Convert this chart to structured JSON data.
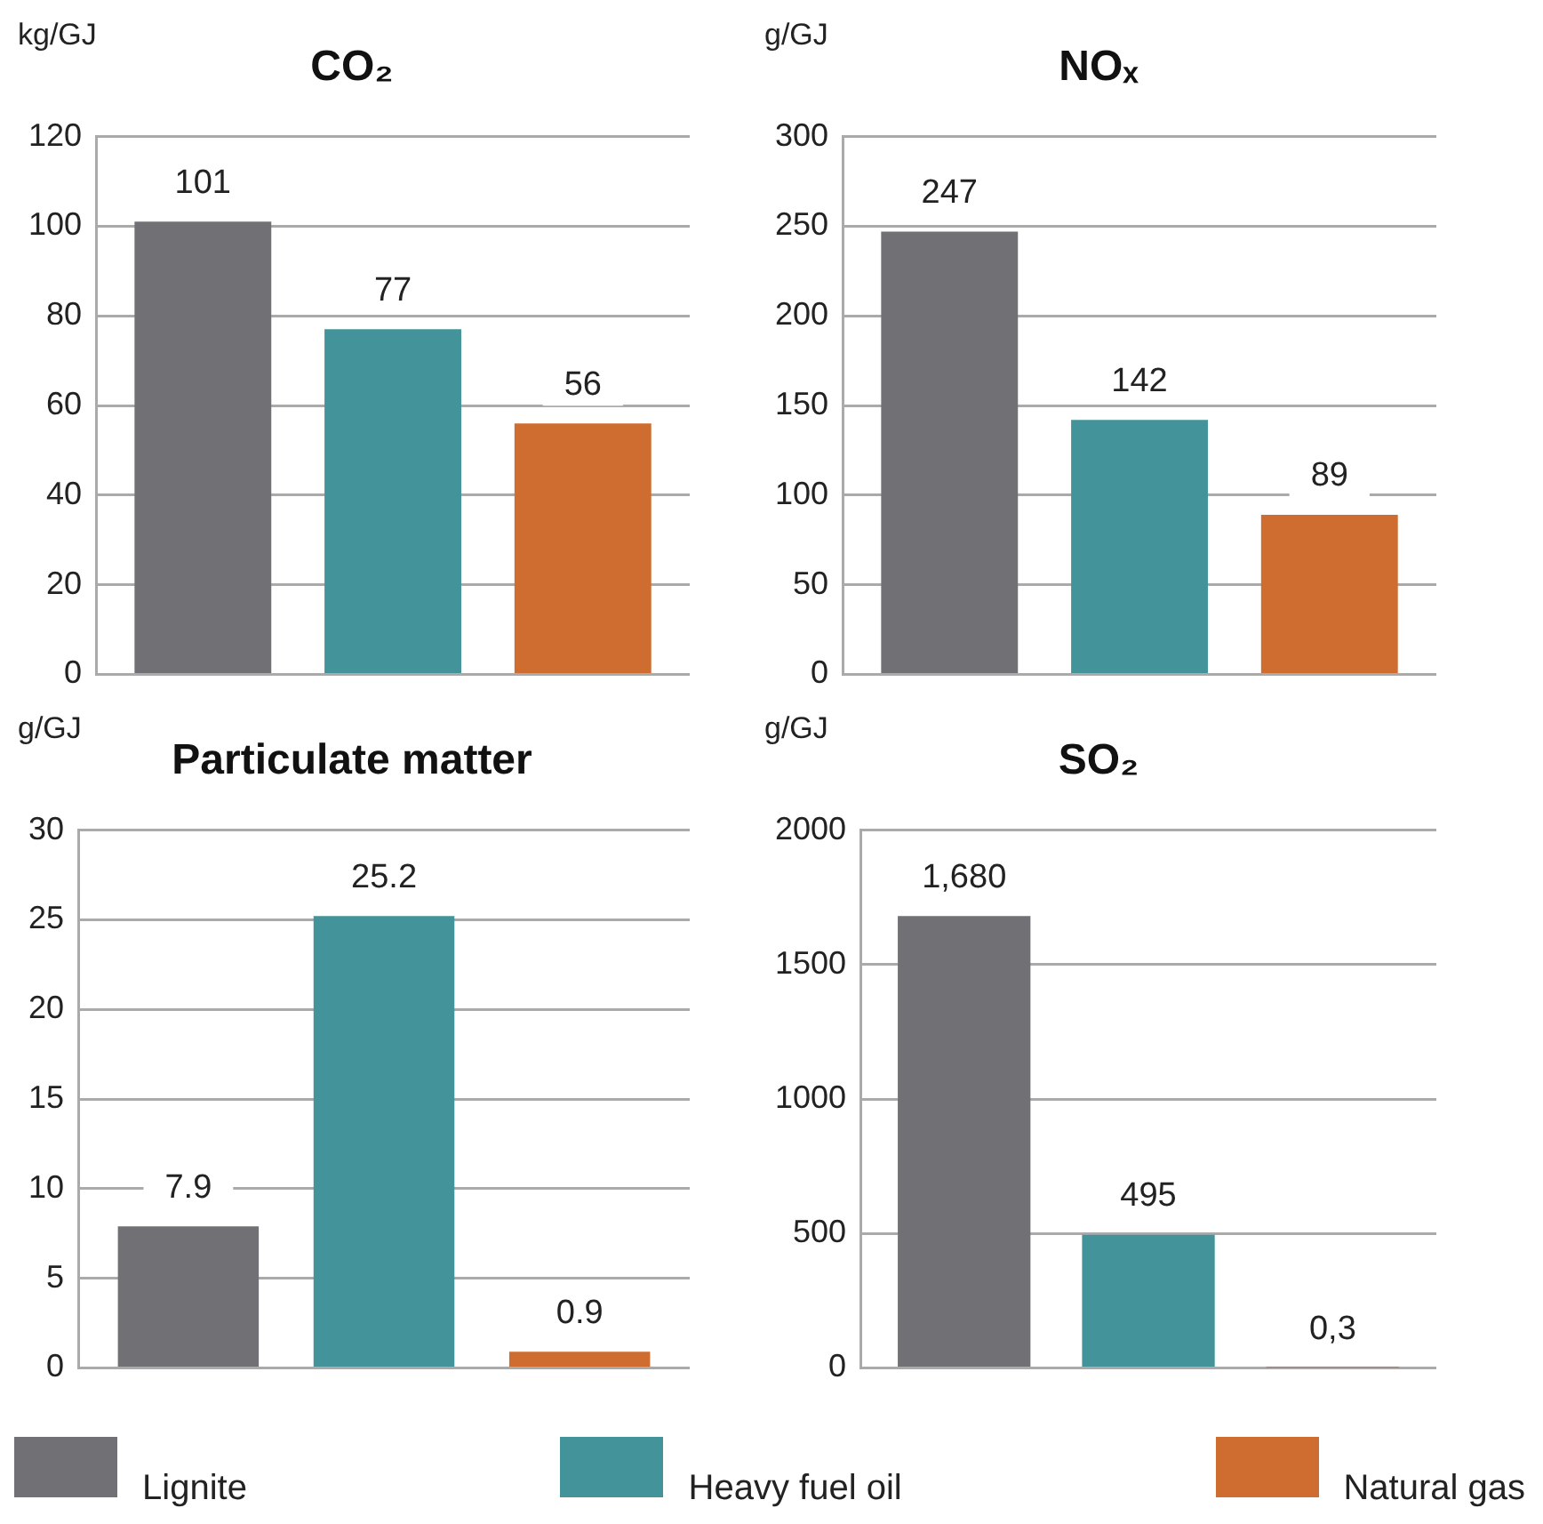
{
  "chart_data": [
    {
      "type": "bar",
      "title": "CO₂",
      "ylabel": "kg/GJ",
      "categories": [
        null
      ],
      "series": [
        {
          "name": "Lignite",
          "color": "#717075",
          "values": [
            101
          ]
        },
        {
          "name": "Heavy fuel oil",
          "color": "#42949a",
          "values": [
            77
          ]
        },
        {
          "name": "Natural gas",
          "color": "#cf6d30",
          "values": [
            56
          ]
        }
      ],
      "ylim": [
        0,
        120
      ],
      "yticks": [
        0,
        20,
        40,
        60,
        80,
        100,
        120
      ],
      "grid": "y",
      "data_labels": true,
      "legend": "bottom"
    },
    {
      "type": "bar",
      "title": "NOₓ",
      "ylabel": "g/GJ",
      "categories": [
        null
      ],
      "series": [
        {
          "color": "#717075",
          "values": [
            247
          ]
        },
        {
          "color": "#42949a",
          "values": [
            142
          ]
        },
        {
          "color": "#cf6d30",
          "values": [
            89
          ]
        }
      ],
      "ylim": [
        0,
        300
      ],
      "yticks": [
        0,
        50,
        100,
        150,
        200,
        250,
        300
      ],
      "grid": "y",
      "data_labels": true
    },
    {
      "type": "bar",
      "title": "Particulate matter",
      "ylabel": "g/GJ",
      "categories": [
        null
      ],
      "series": [
        {
          "color": "#717075",
          "values": [
            7.9
          ]
        },
        {
          "color": "#42949a",
          "values": [
            25.2
          ]
        },
        {
          "color": "#cf6d30",
          "values": [
            0.9
          ]
        }
      ],
      "ylim": [
        0,
        30
      ],
      "yticks": [
        0,
        5,
        10,
        15,
        20,
        25,
        30
      ],
      "grid": "y",
      "data_labels": true
    },
    {
      "type": "bar",
      "title": "SO₂",
      "ylabel": "g/GJ",
      "categories": [
        null
      ],
      "series": [
        {
          "color": "#717075",
          "values": [
            1680
          ],
          "value_labels": [
            "1,680"
          ]
        },
        {
          "color": "#42949a",
          "values": [
            495
          ],
          "value_labels": [
            "495"
          ]
        },
        {
          "color": "#cf6d30",
          "values": [
            0.3
          ],
          "value_labels": [
            "0,3"
          ]
        }
      ],
      "ylim": [
        0,
        2000
      ],
      "yticks": [
        0,
        500,
        1000,
        1500,
        2000
      ],
      "grid": "y"
    }
  ]
}
